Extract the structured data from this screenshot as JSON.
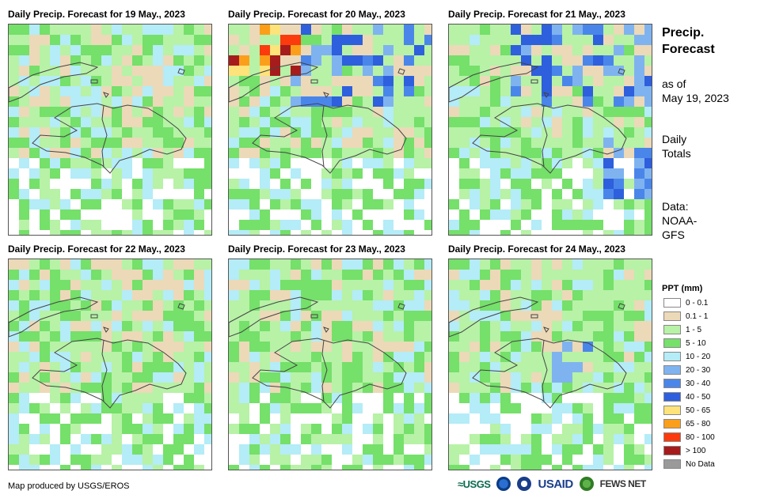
{
  "panels": [
    {
      "title": "Daily Precip. Forecast for 19 May., 2023",
      "seed": 19
    },
    {
      "title": "Daily Precip. Forecast for 20 May., 2023",
      "seed": 20
    },
    {
      "title": "Daily Precip. Forecast for 21 May., 2023",
      "seed": 21
    },
    {
      "title": "Daily Precip. Forecast for 22 May., 2023",
      "seed": 22
    },
    {
      "title": "Daily Precip. Forecast for 23 May., 2023",
      "seed": 23
    },
    {
      "title": "Daily Precip. Forecast for 24 May., 2023",
      "seed": 24
    }
  ],
  "sidebar": {
    "title_line1": "Precip.",
    "title_line2": "Forecast",
    "asof_line1": "as of",
    "asof_line2": "May 19, 2023",
    "totals_line1": "Daily",
    "totals_line2": "Totals",
    "data_line1": "Data:",
    "data_line2": "NOAA-",
    "data_line3": "GFS"
  },
  "legend": {
    "title": "PPT (mm)",
    "items": [
      {
        "label": "0 - 0.1",
        "color": "#ffffff"
      },
      {
        "label": "0.1 - 1",
        "color": "#ecd9b8"
      },
      {
        "label": "1 - 5",
        "color": "#b7f2a7"
      },
      {
        "label": "5 - 10",
        "color": "#75e06a"
      },
      {
        "label": "10 - 20",
        "color": "#b4ecf7"
      },
      {
        "label": "20 - 30",
        "color": "#7fb3f0"
      },
      {
        "label": "30 - 40",
        "color": "#4a86ea"
      },
      {
        "label": "40 - 50",
        "color": "#2e5fdd"
      },
      {
        "label": "50 - 65",
        "color": "#fde37a"
      },
      {
        "label": "65 - 80",
        "color": "#fb9f1b"
      },
      {
        "label": "80 - 100",
        "color": "#fb3a0d"
      },
      {
        "label": "> 100",
        "color": "#a61c1c"
      },
      {
        "label": "No Data",
        "color": "#9a9a9a"
      }
    ]
  },
  "credit": "Map produced by USGS/EROS",
  "logos": {
    "usgs": "USGS",
    "usaid": "USAID",
    "fewsnet": "FEWS NET"
  }
}
